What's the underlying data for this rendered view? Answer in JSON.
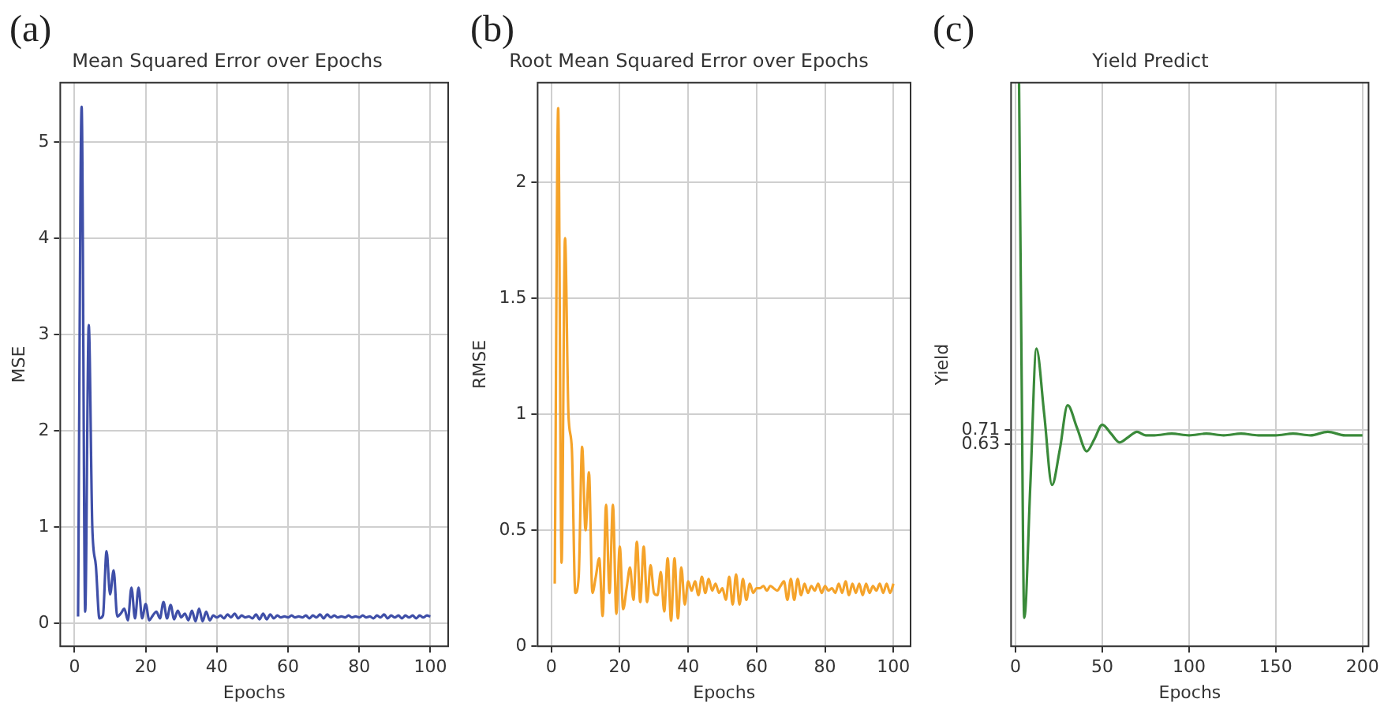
{
  "chart_data": [
    {
      "type": "line",
      "title": "Mean Squared Error over Epochs",
      "xlabel": "Epochs",
      "ylabel": "MSE",
      "annotations": [
        "(a)"
      ],
      "color": "#3f4fa8",
      "marker": "none",
      "grid": true,
      "x": [
        1,
        2,
        3,
        4,
        5,
        6,
        7,
        8,
        9,
        10,
        11,
        12,
        13,
        14,
        15,
        16,
        17,
        18,
        19,
        20,
        21,
        22,
        23,
        24,
        25,
        26,
        27,
        28,
        29,
        30,
        31,
        32,
        33,
        34,
        35,
        36,
        37,
        38,
        39,
        40,
        41,
        42,
        43,
        44,
        45,
        46,
        47,
        48,
        49,
        50,
        51,
        52,
        53,
        54,
        55,
        56,
        57,
        58,
        59,
        60,
        61,
        62,
        63,
        64,
        65,
        66,
        67,
        68,
        69,
        70,
        71,
        72,
        73,
        74,
        75,
        76,
        77,
        78,
        79,
        80,
        81,
        82,
        83,
        84,
        85,
        86,
        87,
        88,
        89,
        90,
        91,
        92,
        93,
        94,
        95,
        96,
        97,
        98,
        99,
        100
      ],
      "values": [
        0.07,
        5.37,
        0.12,
        3.1,
        1.0,
        0.6,
        0.05,
        0.08,
        0.75,
        0.3,
        0.55,
        0.07,
        0.1,
        0.15,
        0.03,
        0.37,
        0.05,
        0.37,
        0.05,
        0.2,
        0.03,
        0.08,
        0.12,
        0.05,
        0.22,
        0.05,
        0.19,
        0.04,
        0.13,
        0.06,
        0.1,
        0.03,
        0.13,
        0.02,
        0.15,
        0.02,
        0.12,
        0.03,
        0.08,
        0.06,
        0.08,
        0.05,
        0.09,
        0.06,
        0.1,
        0.05,
        0.08,
        0.06,
        0.07,
        0.05,
        0.09,
        0.04,
        0.1,
        0.04,
        0.09,
        0.05,
        0.08,
        0.06,
        0.07,
        0.06,
        0.08,
        0.06,
        0.07,
        0.06,
        0.08,
        0.05,
        0.08,
        0.06,
        0.09,
        0.05,
        0.09,
        0.06,
        0.08,
        0.06,
        0.07,
        0.06,
        0.08,
        0.06,
        0.07,
        0.06,
        0.08,
        0.06,
        0.07,
        0.05,
        0.08,
        0.06,
        0.09,
        0.05,
        0.08,
        0.06,
        0.08,
        0.05,
        0.08,
        0.06,
        0.08,
        0.05,
        0.08,
        0.06,
        0.08,
        0.07
      ],
      "xlim": [
        -4,
        105
      ],
      "xticks": [
        0,
        20,
        40,
        60,
        80,
        100
      ],
      "ylim": [
        -0.24,
        5.62
      ],
      "yticks": [
        0,
        1,
        2,
        3,
        4,
        5
      ]
    },
    {
      "type": "line",
      "title": "Root Mean Squared Error over Epochs",
      "xlabel": "Epochs",
      "ylabel": "RMSE",
      "annotations": [
        "(b)"
      ],
      "color": "#f5a32a",
      "marker": "none",
      "grid": true,
      "x": [
        1,
        2,
        3,
        4,
        5,
        6,
        7,
        8,
        9,
        10,
        11,
        12,
        13,
        14,
        15,
        16,
        17,
        18,
        19,
        20,
        21,
        22,
        23,
        24,
        25,
        26,
        27,
        28,
        29,
        30,
        31,
        32,
        33,
        34,
        35,
        36,
        37,
        38,
        39,
        40,
        41,
        42,
        43,
        44,
        45,
        46,
        47,
        48,
        49,
        50,
        51,
        52,
        53,
        54,
        55,
        56,
        57,
        58,
        59,
        60,
        61,
        62,
        63,
        64,
        65,
        66,
        67,
        68,
        69,
        70,
        71,
        72,
        73,
        74,
        75,
        76,
        77,
        78,
        79,
        80,
        81,
        82,
        83,
        84,
        85,
        86,
        87,
        88,
        89,
        90,
        91,
        92,
        93,
        94,
        95,
        96,
        97,
        98,
        99,
        100
      ],
      "values": [
        0.27,
        2.32,
        0.36,
        1.76,
        1.0,
        0.85,
        0.23,
        0.3,
        0.86,
        0.5,
        0.75,
        0.23,
        0.3,
        0.38,
        0.13,
        0.61,
        0.23,
        0.61,
        0.14,
        0.43,
        0.16,
        0.25,
        0.34,
        0.2,
        0.45,
        0.19,
        0.43,
        0.19,
        0.35,
        0.23,
        0.22,
        0.32,
        0.15,
        0.38,
        0.11,
        0.38,
        0.12,
        0.34,
        0.18,
        0.28,
        0.24,
        0.28,
        0.22,
        0.3,
        0.23,
        0.29,
        0.24,
        0.27,
        0.23,
        0.25,
        0.2,
        0.3,
        0.18,
        0.31,
        0.18,
        0.29,
        0.2,
        0.27,
        0.23,
        0.25,
        0.25,
        0.26,
        0.24,
        0.26,
        0.25,
        0.24,
        0.26,
        0.28,
        0.2,
        0.29,
        0.2,
        0.29,
        0.22,
        0.27,
        0.23,
        0.26,
        0.24,
        0.27,
        0.23,
        0.26,
        0.24,
        0.25,
        0.23,
        0.27,
        0.23,
        0.28,
        0.22,
        0.27,
        0.23,
        0.27,
        0.22,
        0.27,
        0.23,
        0.26,
        0.24,
        0.27,
        0.23,
        0.27,
        0.23,
        0.27
      ],
      "xlim": [
        -4,
        105
      ],
      "xticks": [
        0,
        20,
        40,
        60,
        80,
        100
      ],
      "ylim": [
        0,
        2.43
      ],
      "yticks": [
        0,
        0.5,
        1,
        1.5,
        2
      ]
    },
    {
      "type": "line",
      "title": "Yield Predict",
      "xlabel": "Epochs",
      "ylabel": "Yield",
      "annotations": [
        "(c)"
      ],
      "color": "#3a8a3a",
      "marker": "none",
      "grid": true,
      "x": [
        2,
        3.5,
        5,
        8.5,
        12,
        16.5,
        21,
        25.5,
        30,
        35.5,
        41,
        45.5,
        50,
        55,
        60,
        65,
        70,
        75,
        80,
        90,
        100,
        110,
        120,
        130,
        140,
        150,
        160,
        170,
        180,
        190,
        200
      ],
      "values": [
        2.67,
        1.0,
        -0.35,
        0.4,
        1.17,
        0.8,
        0.4,
        0.6,
        0.85,
        0.72,
        0.59,
        0.66,
        0.74,
        0.69,
        0.64,
        0.67,
        0.7,
        0.68,
        0.68,
        0.69,
        0.68,
        0.69,
        0.68,
        0.69,
        0.68,
        0.68,
        0.69,
        0.68,
        0.7,
        0.68,
        0.68
      ],
      "xlim": [
        -2.6,
        203.5
      ],
      "xticks": [
        0,
        50,
        100,
        150,
        200
      ],
      "ylim": [
        -0.51,
        2.67
      ],
      "yticks": [
        0.63,
        0.71
      ]
    }
  ]
}
